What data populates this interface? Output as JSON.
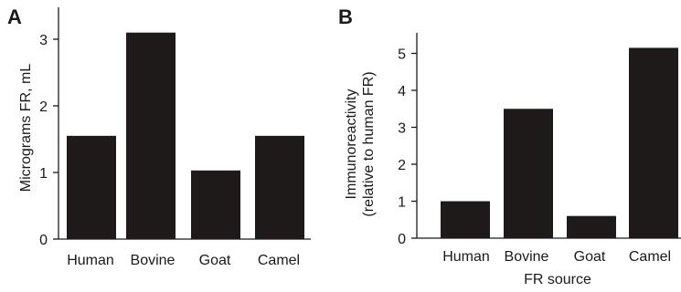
{
  "chart_data": [
    {
      "panel_label": "A",
      "type": "bar",
      "categories": [
        "Human",
        "Bovine",
        "Goat",
        "Camel"
      ],
      "values": [
        1.55,
        3.1,
        1.03,
        1.55
      ],
      "title": "",
      "xlabel": "",
      "ylabel": "Micrograms FR, mL",
      "ylim": [
        0,
        3.3
      ],
      "yticks": [
        "0",
        "1",
        "2",
        "3"
      ],
      "color": "#1f1a1a",
      "grid": false,
      "legend": "none"
    },
    {
      "panel_label": "B",
      "type": "bar",
      "categories": [
        "Human",
        "Bovine",
        "Goat",
        "Camel"
      ],
      "values": [
        1.0,
        3.5,
        0.6,
        5.15
      ],
      "title": "",
      "xlabel": "FR source",
      "ylabel": [
        "Immunoreactivity",
        "(relative to human FR)"
      ],
      "ylim": [
        0,
        5.65
      ],
      "yticks": [
        "0",
        "1",
        "2",
        "3",
        "4",
        "5"
      ],
      "color": "#1f1a1a",
      "grid": false,
      "legend": "none"
    }
  ]
}
